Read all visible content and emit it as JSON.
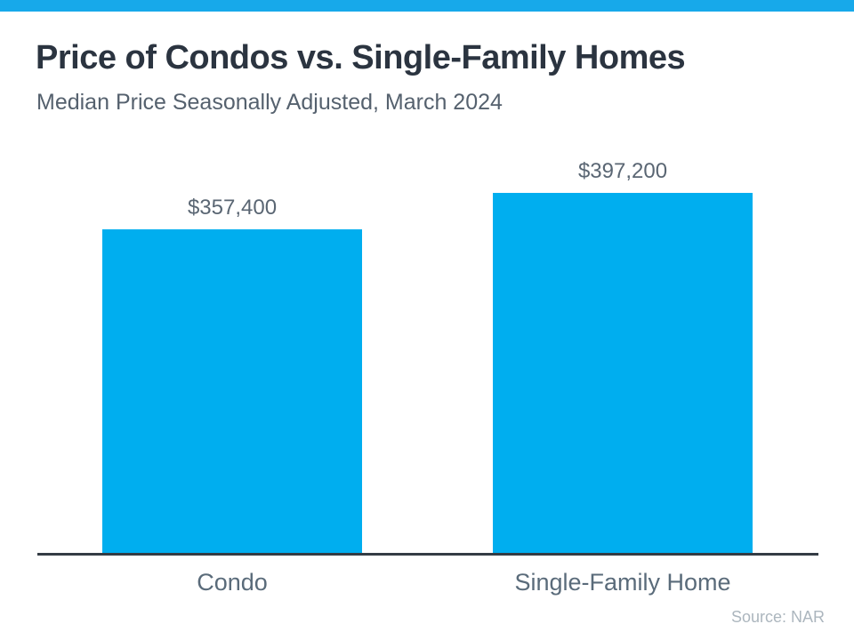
{
  "header": {
    "title": "Price of Condos vs. Single-Family Homes",
    "subtitle": "Median Price Seasonally Adjusted, March 2024"
  },
  "footer": {
    "source": "Source: NAR"
  },
  "colors": {
    "accent_strip": "#17A9EA",
    "bar_fill": "#00AEEF",
    "title_text": "#2B3440",
    "subtitle_text": "#55616E",
    "value_label_text": "#5A6673",
    "category_label_text": "#5A6B7A",
    "axis_line": "#343C44",
    "source_text": "#ACB6BE"
  },
  "chart_data": {
    "type": "bar",
    "title": "Price of Condos vs. Single-Family Homes",
    "subtitle": "Median Price Seasonally Adjusted, March 2024",
    "categories": [
      "Condo",
      "Single-Family Home"
    ],
    "values": [
      357400,
      397200
    ],
    "value_labels": [
      "$357,400",
      "$397,200"
    ],
    "xlabel": "",
    "ylabel": "",
    "ylim": [
      0,
      420000
    ],
    "grid": false,
    "legend": false,
    "bar_color": "#00AEEF",
    "annotations": [
      "Source: NAR"
    ]
  }
}
